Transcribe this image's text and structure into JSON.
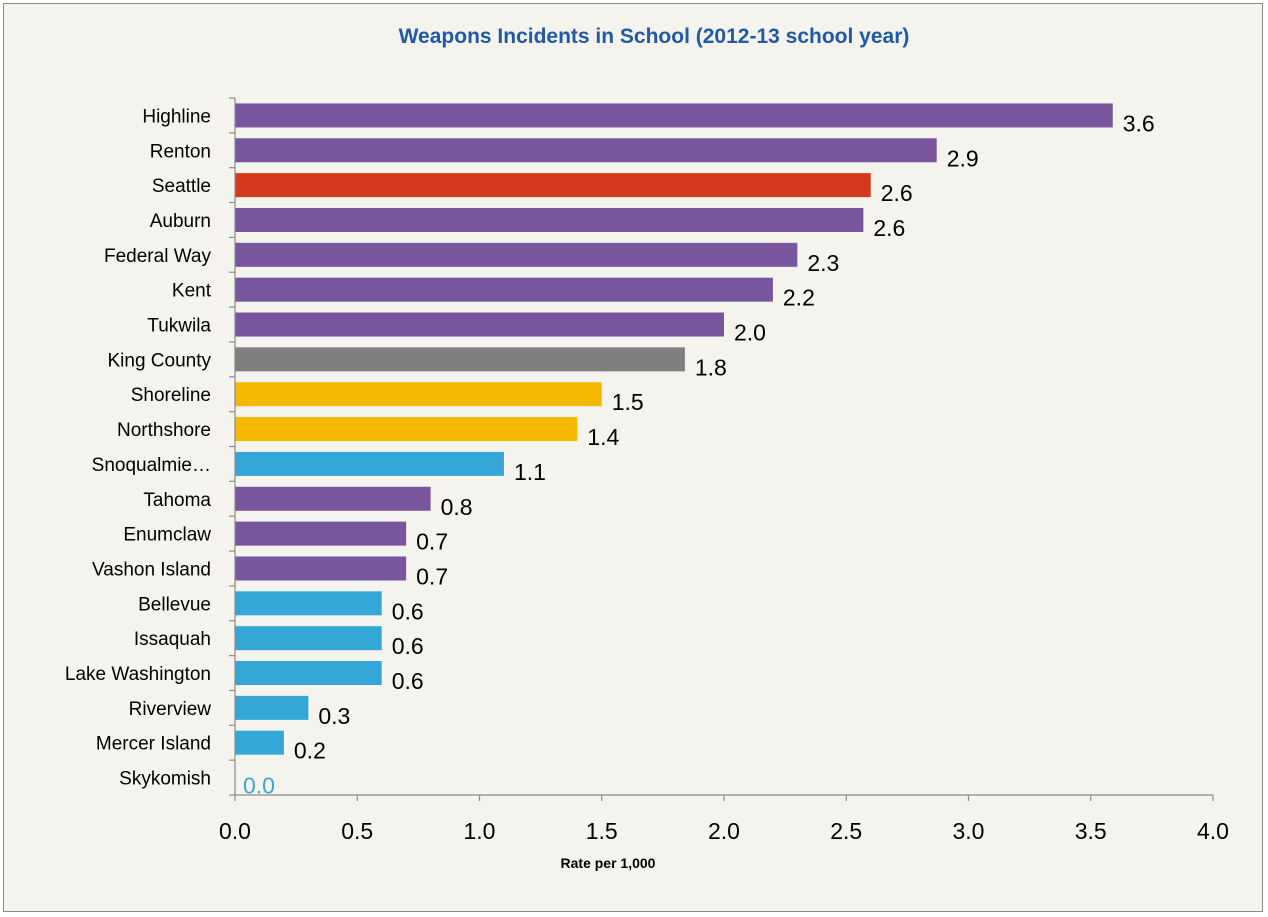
{
  "chart_data": {
    "type": "bar",
    "orientation": "horizontal",
    "title": "Weapons Incidents in School (2012-13 school year)",
    "xlabel": "Rate per 1,000",
    "ylabel": "",
    "xlim": [
      0,
      4.0
    ],
    "xticks": [
      "0.0",
      "0.5",
      "1.0",
      "1.5",
      "2.0",
      "2.5",
      "3.0",
      "3.5",
      "4.0"
    ],
    "grid": false,
    "legend": "none",
    "categories": [
      "Highline",
      "Renton",
      "Seattle",
      "Auburn",
      "Federal Way",
      "Kent",
      "Tukwila",
      "King County",
      "Shoreline",
      "Northshore",
      "Snoqualmie…",
      "Tahoma",
      "Enumclaw",
      "Vashon Island",
      "Bellevue",
      "Issaquah",
      "Lake Washington",
      "Riverview",
      "Mercer Island",
      "Skykomish"
    ],
    "values": [
      3.6,
      2.9,
      2.6,
      2.6,
      2.3,
      2.2,
      2.0,
      1.8,
      1.5,
      1.4,
      1.1,
      0.8,
      0.7,
      0.7,
      0.6,
      0.6,
      0.6,
      0.3,
      0.2,
      0.0
    ],
    "value_labels": [
      "3.6",
      "2.9",
      "2.6",
      "2.6",
      "2.3",
      "2.2",
      "2.0",
      "1.8",
      "1.5",
      "1.4",
      "1.1",
      "0.8",
      "0.7",
      "0.7",
      "0.6",
      "0.6",
      "0.6",
      "0.3",
      "0.2",
      "0.0"
    ],
    "bar_values_exact": [
      3.59,
      2.87,
      2.6,
      2.57,
      2.3,
      2.2,
      2.0,
      1.84,
      1.5,
      1.4,
      1.1,
      0.8,
      0.7,
      0.7,
      0.6,
      0.6,
      0.6,
      0.3,
      0.2,
      0.0
    ],
    "bar_colors": [
      "#77569d",
      "#77569d",
      "#d5391b",
      "#77569d",
      "#77569d",
      "#77569d",
      "#77569d",
      "#7f7f7f",
      "#f5b800",
      "#f5b800",
      "#35a7d6",
      "#77569d",
      "#77569d",
      "#77569d",
      "#35a7d6",
      "#35a7d6",
      "#35a7d6",
      "#35a7d6",
      "#35a7d6",
      "#35a7d6"
    ],
    "value_label_colors": [
      "#000000",
      "#000000",
      "#000000",
      "#000000",
      "#000000",
      "#000000",
      "#000000",
      "#000000",
      "#000000",
      "#000000",
      "#000000",
      "#000000",
      "#000000",
      "#000000",
      "#000000",
      "#000000",
      "#000000",
      "#000000",
      "#000000",
      "#3aa6d2"
    ]
  }
}
